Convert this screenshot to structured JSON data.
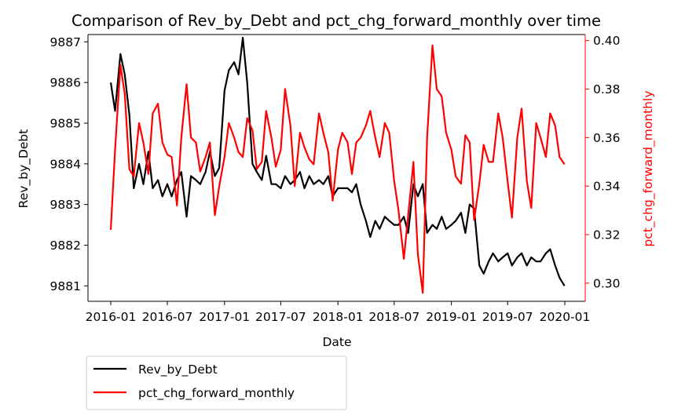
{
  "chart_data": {
    "type": "line",
    "title": "Comparison of Rev_by_Debt and pct_chg_forward_monthly over time",
    "xlabel": "Date",
    "ylabel": "Rev_by_Debt",
    "ylabel_right": "pct_chg_forward_monthly",
    "x_ticks": [
      "2016-01",
      "2016-07",
      "2017-01",
      "2017-07",
      "2018-01",
      "2018-07",
      "2019-01",
      "2019-07",
      "2020-01"
    ],
    "y_ticks_left": [
      "9881",
      "9882",
      "9883",
      "9884",
      "9885",
      "9886",
      "9887"
    ],
    "y_ticks_right": [
      "0.30",
      "0.32",
      "0.34",
      "0.36",
      "0.38",
      "0.40"
    ],
    "ylim_left": [
      9880.62,
      9887.18
    ],
    "ylim_right": [
      0.2925,
      0.4025
    ],
    "grid": false,
    "legend_position": "below-left",
    "colors": {
      "left_axis": "#000000",
      "right_axis": "#ff0000"
    },
    "series": [
      {
        "name": "Rev_by_Debt",
        "color": "#000000",
        "axis": "left",
        "x": [
          "2016-01-01",
          "2016-01-15",
          "2016-02-01",
          "2016-02-15",
          "2016-03-01",
          "2016-03-15",
          "2016-04-01",
          "2016-04-15",
          "2016-05-01",
          "2016-05-15",
          "2016-06-01",
          "2016-06-15",
          "2016-07-01",
          "2016-07-15",
          "2016-08-01",
          "2016-08-15",
          "2016-09-01",
          "2016-09-15",
          "2016-10-01",
          "2016-10-15",
          "2016-11-01",
          "2016-11-15",
          "2016-12-01",
          "2016-12-15",
          "2017-01-01",
          "2017-01-15",
          "2017-02-01",
          "2017-02-15",
          "2017-03-01",
          "2017-03-15",
          "2017-04-01",
          "2017-04-15",
          "2017-05-01",
          "2017-05-15",
          "2017-06-01",
          "2017-06-15",
          "2017-07-01",
          "2017-07-15",
          "2017-08-01",
          "2017-08-15",
          "2017-09-01",
          "2017-09-15",
          "2017-10-01",
          "2017-10-15",
          "2017-11-01",
          "2017-11-15",
          "2017-12-01",
          "2017-12-15",
          "2018-01-01",
          "2018-01-15",
          "2018-02-01",
          "2018-02-15",
          "2018-03-01",
          "2018-03-15",
          "2018-04-01",
          "2018-04-15",
          "2018-05-01",
          "2018-05-15",
          "2018-06-01",
          "2018-06-15",
          "2018-07-01",
          "2018-07-15",
          "2018-08-01",
          "2018-08-15",
          "2018-09-01",
          "2018-09-15",
          "2018-10-01",
          "2018-10-15",
          "2018-11-01",
          "2018-11-15",
          "2018-12-01",
          "2018-12-15",
          "2019-01-01",
          "2019-01-15",
          "2019-02-01",
          "2019-02-15",
          "2019-03-01",
          "2019-03-15",
          "2019-04-01",
          "2019-04-15",
          "2019-05-01",
          "2019-05-15",
          "2019-06-01",
          "2019-06-15",
          "2019-07-01",
          "2019-07-15",
          "2019-08-01",
          "2019-08-15",
          "2019-09-01",
          "2019-09-15",
          "2019-10-01",
          "2019-10-15",
          "2019-11-01",
          "2019-11-15",
          "2019-12-01",
          "2019-12-15",
          "2019-12-31"
        ],
        "values": [
          9886.0,
          9885.3,
          9886.7,
          9886.2,
          9885.2,
          9883.4,
          9884.0,
          9883.5,
          9884.3,
          9883.4,
          9883.6,
          9883.2,
          9883.5,
          9883.2,
          9883.6,
          9883.8,
          9882.7,
          9883.7,
          9883.6,
          9883.5,
          9883.8,
          9884.3,
          9883.7,
          9883.9,
          9885.8,
          9886.3,
          9886.5,
          9886.2,
          9887.1,
          9886.0,
          9884.0,
          9883.8,
          9883.6,
          9884.2,
          9883.5,
          9883.5,
          9883.4,
          9883.7,
          9883.5,
          9883.6,
          9883.8,
          9883.4,
          9883.7,
          9883.5,
          9883.6,
          9883.5,
          9883.7,
          9883.2,
          9883.4,
          9883.4,
          9883.4,
          9883.3,
          9883.5,
          9883.0,
          9882.6,
          9882.2,
          9882.6,
          9882.4,
          9882.7,
          9882.6,
          9882.5,
          9882.5,
          9882.7,
          9882.3,
          9883.5,
          9883.2,
          9883.5,
          9882.3,
          9882.5,
          9882.4,
          9882.7,
          9882.4,
          9882.5,
          9882.6,
          9882.8,
          9882.3,
          9883.0,
          9882.9,
          9881.5,
          9881.3,
          9881.6,
          9881.8,
          9881.6,
          9881.7,
          9881.8,
          9881.5,
          9881.7,
          9881.8,
          9881.5,
          9881.7,
          9881.6,
          9881.6,
          9881.8,
          9881.9,
          9881.5,
          9881.2,
          9881.0
        ]
      },
      {
        "name": "pct_chg_forward_monthly",
        "color": "#ff0000",
        "axis": "right",
        "x": [
          "2016-01-01",
          "2016-01-15",
          "2016-02-01",
          "2016-02-15",
          "2016-03-01",
          "2016-03-15",
          "2016-04-01",
          "2016-04-15",
          "2016-05-01",
          "2016-05-15",
          "2016-06-01",
          "2016-06-15",
          "2016-07-01",
          "2016-07-15",
          "2016-08-01",
          "2016-08-15",
          "2016-09-01",
          "2016-09-15",
          "2016-10-01",
          "2016-10-15",
          "2016-11-01",
          "2016-11-15",
          "2016-12-01",
          "2016-12-15",
          "2017-01-01",
          "2017-01-15",
          "2017-02-01",
          "2017-02-15",
          "2017-03-01",
          "2017-03-15",
          "2017-04-01",
          "2017-04-15",
          "2017-05-01",
          "2017-05-15",
          "2017-06-01",
          "2017-06-15",
          "2017-07-01",
          "2017-07-15",
          "2017-08-01",
          "2017-08-15",
          "2017-09-01",
          "2017-09-15",
          "2017-10-01",
          "2017-10-15",
          "2017-11-01",
          "2017-11-15",
          "2017-12-01",
          "2017-12-15",
          "2018-01-01",
          "2018-01-15",
          "2018-02-01",
          "2018-02-15",
          "2018-03-01",
          "2018-03-15",
          "2018-04-01",
          "2018-04-15",
          "2018-05-01",
          "2018-05-15",
          "2018-06-01",
          "2018-06-15",
          "2018-07-01",
          "2018-07-15",
          "2018-08-01",
          "2018-08-15",
          "2018-09-01",
          "2018-09-15",
          "2018-10-01",
          "2018-10-15",
          "2018-11-01",
          "2018-11-15",
          "2018-12-01",
          "2018-12-15",
          "2019-01-01",
          "2019-01-15",
          "2019-02-01",
          "2019-02-15",
          "2019-03-01",
          "2019-03-15",
          "2019-04-01",
          "2019-04-15",
          "2019-05-01",
          "2019-05-15",
          "2019-06-01",
          "2019-06-15",
          "2019-07-01",
          "2019-07-15",
          "2019-08-01",
          "2019-08-15",
          "2019-09-01",
          "2019-09-15",
          "2019-10-01",
          "2019-10-15",
          "2019-11-01",
          "2019-11-15",
          "2019-12-01",
          "2019-12-15",
          "2019-12-31"
        ],
        "values": [
          0.322,
          0.355,
          0.39,
          0.378,
          0.347,
          0.344,
          0.366,
          0.358,
          0.345,
          0.37,
          0.374,
          0.358,
          0.353,
          0.352,
          0.332,
          0.36,
          0.382,
          0.36,
          0.358,
          0.346,
          0.352,
          0.358,
          0.328,
          0.34,
          0.352,
          0.366,
          0.36,
          0.354,
          0.352,
          0.368,
          0.363,
          0.347,
          0.35,
          0.371,
          0.36,
          0.348,
          0.355,
          0.38,
          0.365,
          0.34,
          0.362,
          0.356,
          0.351,
          0.349,
          0.37,
          0.362,
          0.354,
          0.334,
          0.355,
          0.362,
          0.358,
          0.345,
          0.358,
          0.36,
          0.365,
          0.371,
          0.36,
          0.352,
          0.366,
          0.362,
          0.342,
          0.33,
          0.31,
          0.328,
          0.35,
          0.312,
          0.296,
          0.36,
          0.398,
          0.38,
          0.377,
          0.362,
          0.355,
          0.344,
          0.341,
          0.361,
          0.358,
          0.326,
          0.341,
          0.357,
          0.35,
          0.35,
          0.37,
          0.36,
          0.342,
          0.327,
          0.36,
          0.372,
          0.342,
          0.331,
          0.366,
          0.36,
          0.352,
          0.37,
          0.365,
          0.352,
          0.349
        ]
      }
    ]
  },
  "legend": {
    "items": [
      {
        "label": "Rev_by_Debt",
        "color": "#000000"
      },
      {
        "label": "pct_chg_forward_monthly",
        "color": "#ff0000"
      }
    ]
  }
}
